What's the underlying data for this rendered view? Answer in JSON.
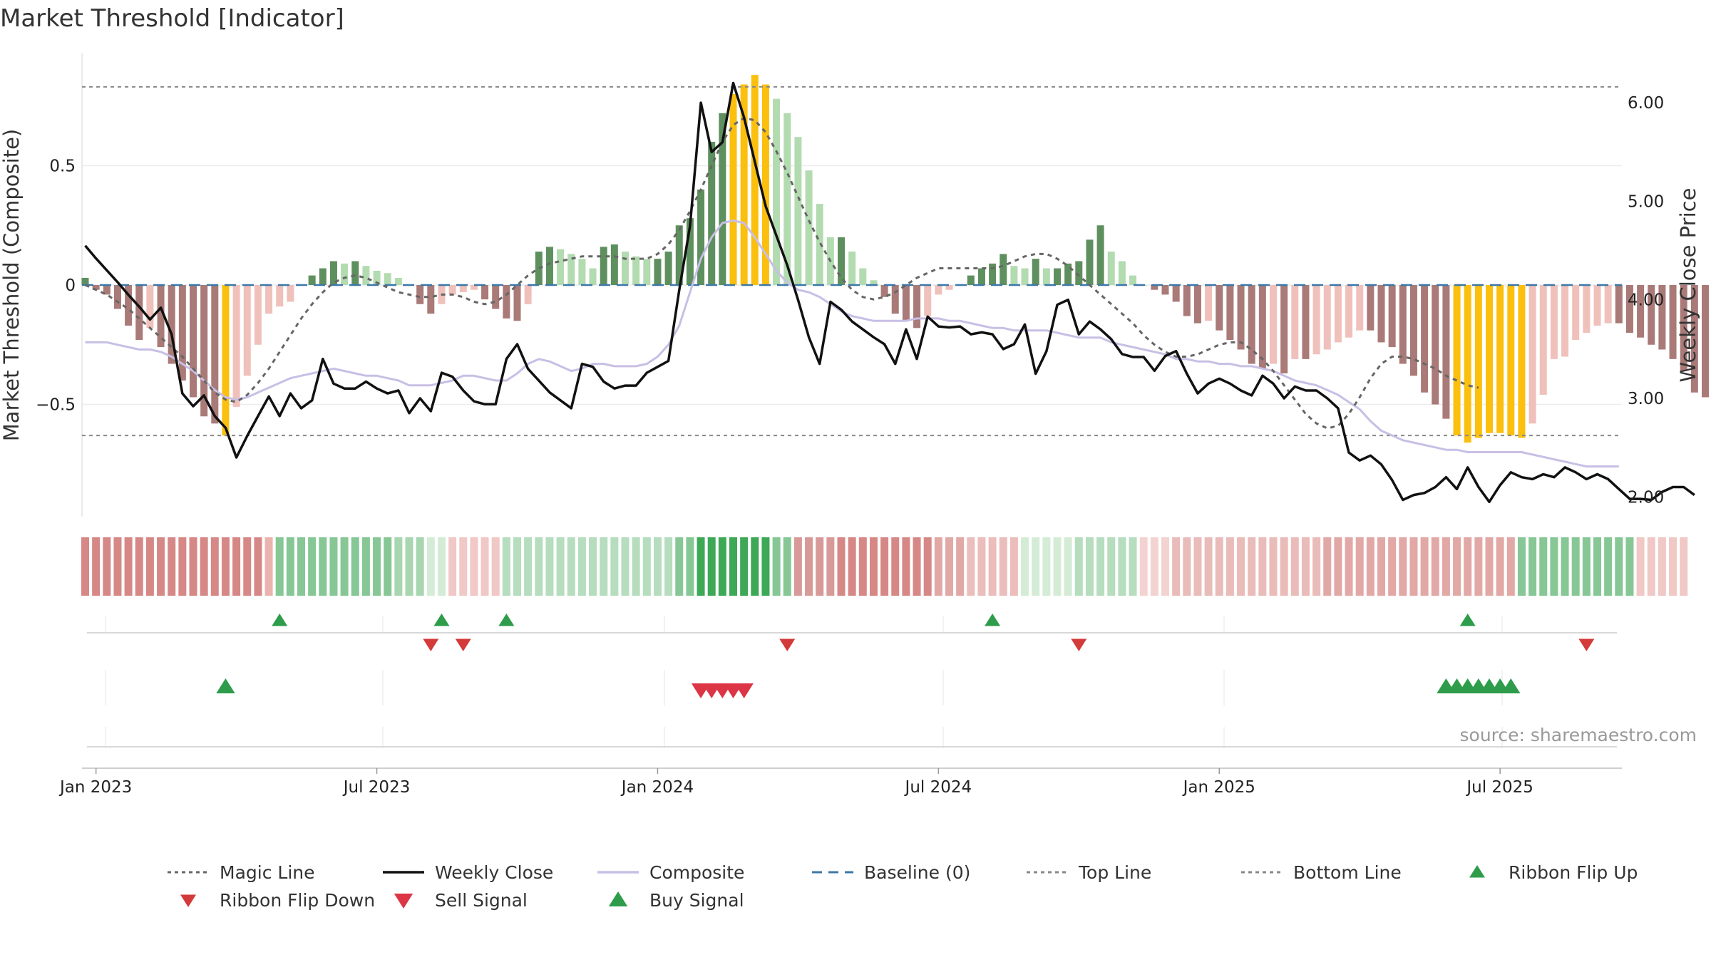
{
  "chart_data": {
    "type": "bar",
    "title": "Market Threshold [Indicator]",
    "ylabel_left": "Market Threshold (Composite)",
    "ylabel_right": "Weekly Close Price",
    "source": "source: sharemaestro.com",
    "left_axis": {
      "ylim": [
        -0.97,
        0.97
      ],
      "ticks": [
        0.5,
        0,
        -0.5
      ],
      "tick_labels": [
        "0.5",
        "0",
        "−0.5"
      ]
    },
    "right_axis": {
      "ylim": [
        1.8,
        6.5
      ],
      "ticks": [
        6.0,
        5.0,
        4.0,
        3.0,
        2.0
      ],
      "tick_labels": [
        "6.00",
        "5.00",
        "4.00",
        "3.00",
        "2.00"
      ]
    },
    "x_ticks": [
      {
        "week": 1,
        "label": "Jan 2023"
      },
      {
        "week": 27,
        "label": "Jul 2023"
      },
      {
        "week": 53,
        "label": "Jan 2024"
      },
      {
        "week": 79,
        "label": "Jul 2024"
      },
      {
        "week": 105,
        "label": "Jan 2025"
      },
      {
        "week": 131,
        "label": "Jul 2025"
      }
    ],
    "x_range": [
      -1,
      142
    ],
    "top_line": 0.83,
    "bottom_line": -0.63,
    "baseline": 0,
    "colors": {
      "pos_strong": "#5e8f5e",
      "pos_weak": "#b3dbb0",
      "neg_strong": "#a97a77",
      "neg_weak": "#f0c0bb",
      "extreme": "#fbbf0e",
      "weekly_close": "#111111",
      "composite": "#c8bfe5",
      "magic_line": "#666666",
      "baseline": "#3c78a8",
      "guide": "#888888",
      "buy": "#2e9c4a",
      "sell": "#dc3545",
      "flip_up": "#2e9c4a",
      "flip_down": "#d33a3a"
    },
    "composite_bars": [
      0.03,
      -0.02,
      -0.04,
      -0.1,
      -0.17,
      -0.23,
      -0.18,
      -0.26,
      -0.33,
      -0.4,
      -0.47,
      -0.55,
      -0.58,
      -0.63,
      -0.51,
      -0.38,
      -0.25,
      -0.12,
      -0.09,
      -0.07,
      0.0,
      0.04,
      0.07,
      0.1,
      0.09,
      0.1,
      0.08,
      0.06,
      0.05,
      0.03,
      0.0,
      -0.08,
      -0.12,
      -0.08,
      -0.04,
      -0.03,
      -0.02,
      -0.06,
      -0.1,
      -0.14,
      -0.15,
      -0.08,
      0.14,
      0.16,
      0.15,
      0.13,
      0.11,
      0.07,
      0.16,
      0.17,
      0.14,
      0.12,
      0.11,
      0.11,
      0.14,
      0.25,
      0.28,
      0.4,
      0.6,
      0.72,
      0.8,
      0.84,
      0.88,
      0.84,
      0.78,
      0.72,
      0.62,
      0.48,
      0.34,
      0.2,
      0.2,
      0.14,
      0.07,
      0.02,
      -0.05,
      -0.12,
      -0.15,
      -0.18,
      -0.13,
      -0.04,
      -0.02,
      0.0,
      0.04,
      0.07,
      0.09,
      0.13,
      0.08,
      0.07,
      0.11,
      0.07,
      0.07,
      0.09,
      0.1,
      0.19,
      0.25,
      0.14,
      0.1,
      0.04,
      0.0,
      -0.02,
      -0.04,
      -0.07,
      -0.13,
      -0.16,
      -0.15,
      -0.19,
      -0.23,
      -0.27,
      -0.33,
      -0.35,
      -0.33,
      -0.37,
      -0.31,
      -0.31,
      -0.29,
      -0.27,
      -0.24,
      -0.22,
      -0.19,
      -0.19,
      -0.24,
      -0.26,
      -0.33,
      -0.38,
      -0.45,
      -0.5,
      -0.56,
      -0.63,
      -0.66,
      -0.64,
      -0.62,
      -0.62,
      -0.63,
      -0.64,
      -0.58,
      -0.46,
      -0.31,
      -0.3,
      -0.23,
      -0.2,
      -0.17,
      -0.16,
      -0.16,
      -0.2,
      -0.22,
      -0.25,
      -0.27,
      -0.31,
      -0.36,
      -0.45,
      -0.47,
      -0.49,
      -0.45,
      -0.48
    ],
    "weekly_close": [
      4.55,
      4.42,
      4.3,
      4.18,
      4.05,
      3.93,
      3.8,
      3.92,
      3.65,
      3.05,
      2.92,
      3.03,
      2.82,
      2.7,
      2.4,
      2.62,
      2.82,
      3.02,
      2.82,
      3.05,
      2.9,
      2.98,
      3.4,
      3.15,
      3.1,
      3.1,
      3.17,
      3.1,
      3.05,
      3.08,
      2.85,
      3.0,
      2.87,
      3.26,
      3.22,
      3.08,
      2.97,
      2.94,
      2.94,
      3.4,
      3.55,
      3.3,
      3.18,
      3.06,
      2.98,
      2.9,
      3.35,
      3.32,
      3.17,
      3.1,
      3.13,
      3.13,
      3.26,
      3.32,
      3.38,
      4.1,
      4.75,
      6.0,
      5.5,
      5.6,
      6.2,
      5.85,
      5.4,
      4.95,
      4.65,
      4.35,
      4.0,
      3.62,
      3.35,
      3.98,
      3.9,
      3.78,
      3.7,
      3.62,
      3.55,
      3.35,
      3.7,
      3.4,
      3.83,
      3.73,
      3.72,
      3.73,
      3.65,
      3.67,
      3.65,
      3.5,
      3.55,
      3.75,
      3.25,
      3.48,
      3.95,
      4.0,
      3.65,
      3.78,
      3.7,
      3.6,
      3.45,
      3.42,
      3.42,
      3.28,
      3.43,
      3.48,
      3.25,
      3.05,
      3.15,
      3.2,
      3.15,
      3.08,
      3.03,
      3.23,
      3.15,
      3.0,
      3.12,
      3.08,
      3.08,
      3.0,
      2.9,
      2.45,
      2.37,
      2.42,
      2.33,
      2.17,
      1.97,
      2.02,
      2.04,
      2.1,
      2.2,
      2.08,
      2.3,
      2.1,
      1.95,
      2.12,
      2.25,
      2.2,
      2.18,
      2.23,
      2.2,
      2.3,
      2.25,
      2.18,
      2.23,
      2.18,
      2.08,
      1.98,
      1.98,
      1.97,
      2.05,
      2.1,
      2.1,
      2.02
    ],
    "composite_line": [
      -0.24,
      -0.24,
      -0.24,
      -0.25,
      -0.26,
      -0.27,
      -0.27,
      -0.28,
      -0.3,
      -0.33,
      -0.36,
      -0.4,
      -0.44,
      -0.47,
      -0.48,
      -0.47,
      -0.45,
      -0.43,
      -0.41,
      -0.39,
      -0.38,
      -0.37,
      -0.36,
      -0.35,
      -0.36,
      -0.37,
      -0.38,
      -0.38,
      -0.39,
      -0.4,
      -0.42,
      -0.42,
      -0.42,
      -0.41,
      -0.4,
      -0.38,
      -0.38,
      -0.39,
      -0.4,
      -0.4,
      -0.37,
      -0.33,
      -0.31,
      -0.32,
      -0.34,
      -0.36,
      -0.35,
      -0.33,
      -0.33,
      -0.34,
      -0.34,
      -0.34,
      -0.33,
      -0.3,
      -0.25,
      -0.17,
      -0.03,
      0.11,
      0.2,
      0.26,
      0.27,
      0.26,
      0.2,
      0.13,
      0.06,
      0.01,
      -0.02,
      -0.03,
      -0.05,
      -0.08,
      -0.11,
      -0.13,
      -0.14,
      -0.15,
      -0.15,
      -0.15,
      -0.15,
      -0.14,
      -0.14,
      -0.14,
      -0.15,
      -0.15,
      -0.16,
      -0.17,
      -0.18,
      -0.18,
      -0.19,
      -0.19,
      -0.19,
      -0.19,
      -0.2,
      -0.21,
      -0.22,
      -0.22,
      -0.22,
      -0.24,
      -0.25,
      -0.26,
      -0.27,
      -0.28,
      -0.29,
      -0.31,
      -0.31,
      -0.32,
      -0.32,
      -0.33,
      -0.33,
      -0.34,
      -0.34,
      -0.35,
      -0.36,
      -0.38,
      -0.4,
      -0.41,
      -0.42,
      -0.44,
      -0.46,
      -0.49,
      -0.52,
      -0.57,
      -0.61,
      -0.63,
      -0.65,
      -0.66,
      -0.67,
      -0.68,
      -0.69,
      -0.69,
      -0.7,
      -0.7,
      -0.7,
      -0.7,
      -0.7,
      -0.7,
      -0.71,
      -0.72,
      -0.73,
      -0.74,
      -0.75,
      -0.76,
      -0.76,
      -0.76,
      -0.76
    ],
    "magic_line": [
      0.0,
      -0.02,
      -0.04,
      -0.07,
      -0.1,
      -0.14,
      -0.18,
      -0.22,
      -0.26,
      -0.3,
      -0.35,
      -0.4,
      -0.45,
      -0.48,
      -0.49,
      -0.46,
      -0.41,
      -0.35,
      -0.28,
      -0.21,
      -0.14,
      -0.08,
      -0.03,
      0.01,
      0.03,
      0.04,
      0.03,
      0.01,
      -0.01,
      -0.03,
      -0.04,
      -0.05,
      -0.05,
      -0.04,
      -0.04,
      -0.05,
      -0.07,
      -0.08,
      -0.07,
      -0.04,
      0.0,
      0.04,
      0.07,
      0.09,
      0.1,
      0.11,
      0.12,
      0.12,
      0.12,
      0.12,
      0.11,
      0.11,
      0.11,
      0.13,
      0.17,
      0.23,
      0.31,
      0.4,
      0.5,
      0.6,
      0.67,
      0.7,
      0.69,
      0.64,
      0.56,
      0.47,
      0.37,
      0.27,
      0.18,
      0.1,
      0.03,
      -0.02,
      -0.05,
      -0.06,
      -0.05,
      -0.03,
      0.0,
      0.03,
      0.05,
      0.07,
      0.07,
      0.07,
      0.07,
      0.07,
      0.07,
      0.08,
      0.1,
      0.12,
      0.13,
      0.13,
      0.11,
      0.08,
      0.04,
      0.0,
      -0.04,
      -0.08,
      -0.12,
      -0.16,
      -0.21,
      -0.25,
      -0.28,
      -0.3,
      -0.3,
      -0.29,
      -0.27,
      -0.25,
      -0.24,
      -0.24,
      -0.27,
      -0.31,
      -0.36,
      -0.42,
      -0.48,
      -0.54,
      -0.58,
      -0.6,
      -0.59,
      -0.54,
      -0.47,
      -0.39,
      -0.33,
      -0.3,
      -0.3,
      -0.31,
      -0.33,
      -0.35,
      -0.38,
      -0.4,
      -0.42,
      -0.43
    ],
    "magic_line_start": 0,
    "ribbon_colors": [
      "#d68887",
      "#d68887",
      "#d68887",
      "#d68887",
      "#d68887",
      "#d68887",
      "#d68887",
      "#d68887",
      "#d68887",
      "#d68887",
      "#d68887",
      "#d68887",
      "#d68887",
      "#d68887",
      "#d68887",
      "#d68887",
      "#d68887",
      "#eab3ae",
      "#86c795",
      "#86c795",
      "#86c795",
      "#86c795",
      "#86c795",
      "#86c795",
      "#86c795",
      "#86c795",
      "#86c795",
      "#86c795",
      "#86c795",
      "#a7d6b0",
      "#a7d6b0",
      "#a7d6b0",
      "#d4ecd6",
      "#d4ecd6",
      "#f0c8c6",
      "#f0c8c6",
      "#f0c8c6",
      "#f0c8c6",
      "#f0c8c6",
      "#b5ddbe",
      "#b5ddbe",
      "#b5ddbe",
      "#b5ddbe",
      "#b5ddbe",
      "#b5ddbe",
      "#b5ddbe",
      "#b5ddbe",
      "#b5ddbe",
      "#b5ddbe",
      "#b5ddbe",
      "#b5ddbe",
      "#b5ddbe",
      "#b5ddbe",
      "#b5ddbe",
      "#b5ddbe",
      "#86c795",
      "#86c795",
      "#3da856",
      "#3da856",
      "#3da856",
      "#3da856",
      "#3da856",
      "#3da856",
      "#3da856",
      "#86c795",
      "#86c795",
      "#d89a98",
      "#d89a98",
      "#d89a98",
      "#d89a98",
      "#d68887",
      "#d68887",
      "#d68887",
      "#d68887",
      "#d68887",
      "#d68887",
      "#d68887",
      "#d68887",
      "#d68887",
      "#e1a8a6",
      "#e1a8a6",
      "#e1a8a6",
      "#ebbdbb",
      "#ebbdbb",
      "#ebbdbb",
      "#ebbdbb",
      "#ebbdbb",
      "#d4ecd6",
      "#d4ecd6",
      "#d4ecd6",
      "#d4ecd6",
      "#d4ecd6",
      "#b5ddbe",
      "#b5ddbe",
      "#b5ddbe",
      "#b5ddbe",
      "#b5ddbe",
      "#b5ddbe",
      "#f3d3d1",
      "#f3d3d1",
      "#f3d3d1",
      "#e9bcb9",
      "#e9bcb9",
      "#e9bcb9",
      "#e9bcb9",
      "#e9bcb9",
      "#e9bcb9",
      "#e9bcb9",
      "#e9bcb9",
      "#e9bcb9",
      "#e9bcb9",
      "#e9bcb9",
      "#e9bcb9",
      "#e9bcb9",
      "#e9bcb9",
      "#e2a8a6",
      "#e2a8a6",
      "#e2a8a6",
      "#e2a8a6",
      "#e2a8a6",
      "#e2a8a6",
      "#e2a8a6",
      "#e2a8a6",
      "#e2a8a6",
      "#e2a8a6",
      "#e2a8a6",
      "#e2a8a6",
      "#e2a8a6",
      "#e2a8a6",
      "#e2a8a6",
      "#e2a8a6",
      "#e2a8a6",
      "#e2a8a6",
      "#86c795",
      "#86c795",
      "#86c795",
      "#86c795",
      "#86c795",
      "#86c795",
      "#86c795",
      "#86c795",
      "#86c795",
      "#86c795",
      "#86c795",
      "#f0c8c6",
      "#f0c8c6",
      "#f0c8c6",
      "#f0c8c6",
      "#f0c8c6"
    ],
    "ribbon_flip_up": [
      18,
      33,
      39,
      84,
      128
    ],
    "ribbon_flip_down": [
      32,
      35,
      65,
      92,
      139
    ],
    "buy_signals": [
      13,
      126,
      127,
      128,
      129,
      130,
      131,
      132
    ],
    "sell_signals": [
      57,
      58,
      59,
      60,
      61
    ],
    "legend": [
      {
        "label": "Magic Line",
        "kind": "dotted",
        "color": "#666666"
      },
      {
        "label": "Weekly Close",
        "kind": "solid",
        "color": "#111111"
      },
      {
        "label": "Composite",
        "kind": "solid",
        "color": "#c8bfe5"
      },
      {
        "label": "Baseline (0)",
        "kind": "dashed",
        "color": "#3c78a8"
      },
      {
        "label": "Top Line",
        "kind": "dotted",
        "color": "#888888"
      },
      {
        "label": "Bottom Line",
        "kind": "dotted",
        "color": "#888888"
      },
      {
        "label": "Ribbon Flip Up",
        "kind": "tri-up",
        "color": "#2e9c4a"
      },
      {
        "label": "Ribbon Flip Down",
        "kind": "tri-down",
        "color": "#d33a3a"
      },
      {
        "label": "Sell Signal",
        "kind": "tri-down-lg",
        "color": "#dc3545"
      },
      {
        "label": "Buy Signal",
        "kind": "tri-up-lg",
        "color": "#2e9c4a"
      }
    ]
  }
}
